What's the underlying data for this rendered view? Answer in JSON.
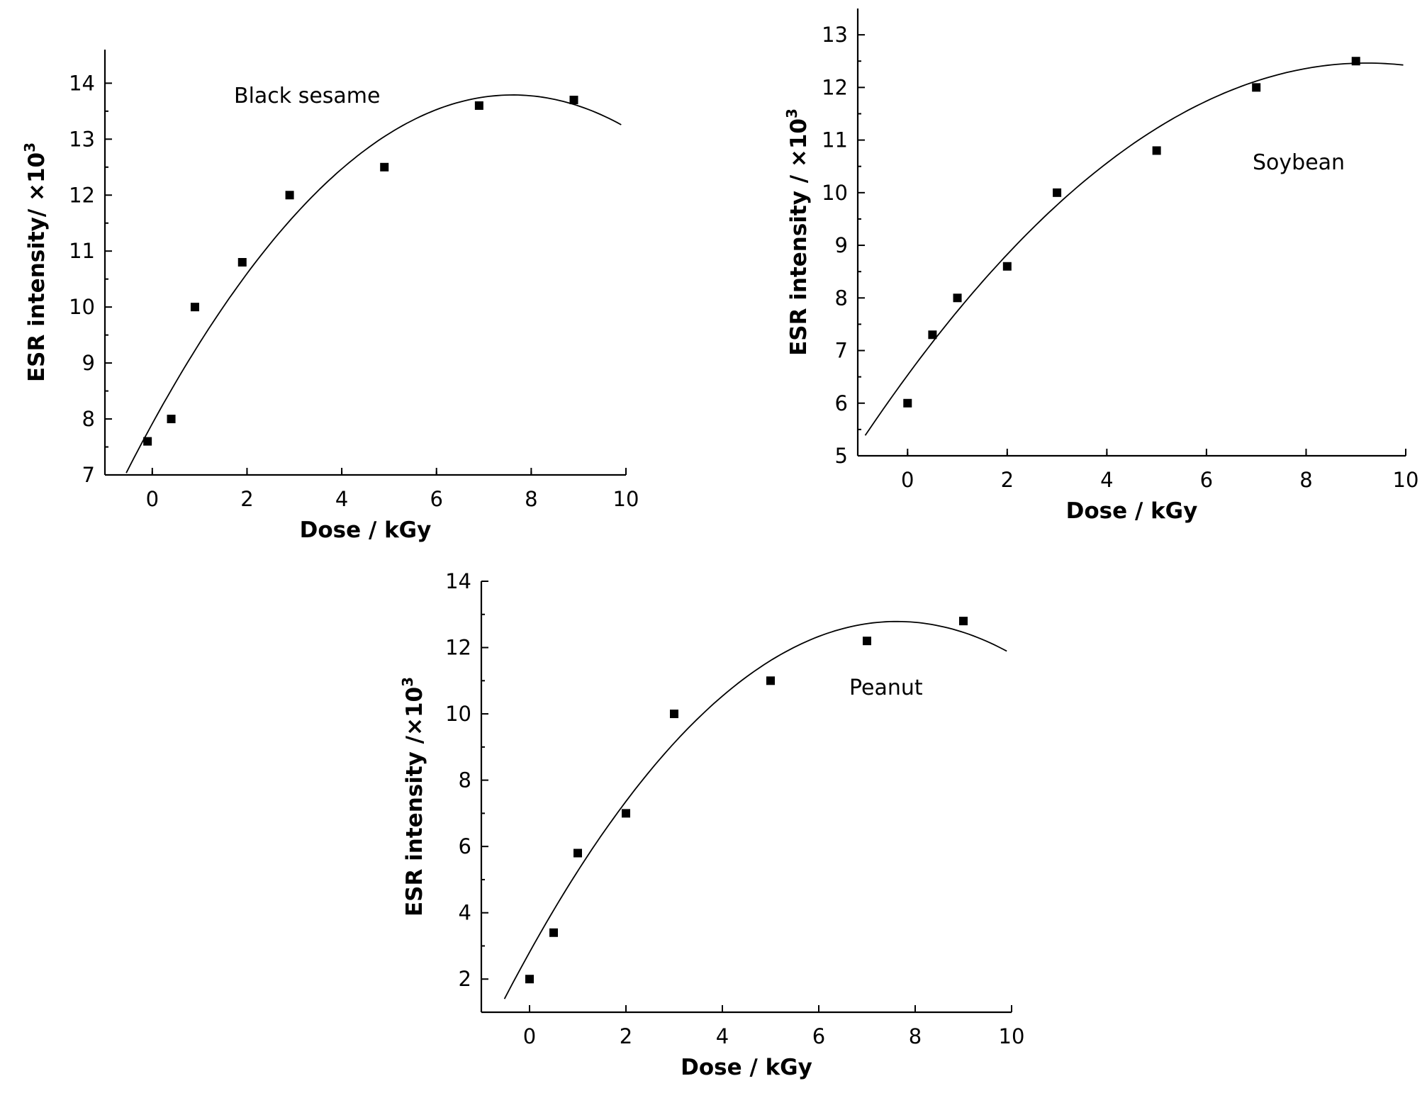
{
  "chart_data": [
    {
      "type": "scatter",
      "annotation": "Black sesame",
      "xlabel": "Dose / kGy",
      "ylabel_main": "ESR intensity/ ×10",
      "ylabel_sup": "3",
      "xlim": [
        -1,
        10
      ],
      "ylim": [
        7,
        14.6
      ],
      "xticks": [
        0,
        2,
        4,
        6,
        8,
        10
      ],
      "yticks": [
        7,
        8,
        9,
        10,
        11,
        12,
        13,
        14
      ],
      "grid": false,
      "points": [
        {
          "x": -0.1,
          "y": 7.6
        },
        {
          "x": 0.4,
          "y": 8.0
        },
        {
          "x": 0.9,
          "y": 10.0
        },
        {
          "x": 1.9,
          "y": 10.8
        },
        {
          "x": 2.9,
          "y": 12.0
        },
        {
          "x": 4.9,
          "y": 12.5
        },
        {
          "x": 6.9,
          "y": 13.6
        },
        {
          "x": 8.9,
          "y": 13.7
        }
      ],
      "fit": {
        "type": "quadratic",
        "coefficients": [
          7.916,
          1.5441,
          -0.10147
        ],
        "x_range": [
          -0.55,
          9.9
        ]
      }
    },
    {
      "type": "scatter",
      "annotation": "Soybean",
      "xlabel": "Dose / kGy",
      "ylabel_main": "ESR intensity / ×10",
      "ylabel_sup": "3",
      "xlim": [
        -1,
        10
      ],
      "ylim": [
        5,
        13.5
      ],
      "xticks": [
        0,
        2,
        4,
        6,
        8,
        10
      ],
      "yticks": [
        5,
        6,
        7,
        8,
        9,
        10,
        11,
        12,
        13
      ],
      "grid": false,
      "points": [
        {
          "x": 0,
          "y": 6.0
        },
        {
          "x": 0.5,
          "y": 7.3
        },
        {
          "x": 1.0,
          "y": 8.0
        },
        {
          "x": 2.0,
          "y": 8.6
        },
        {
          "x": 3.0,
          "y": 10.0
        },
        {
          "x": 5.0,
          "y": 10.8
        },
        {
          "x": 7.0,
          "y": 12.0
        },
        {
          "x": 9.0,
          "y": 12.5
        }
      ],
      "fit": {
        "type": "quadratic",
        "coefficients": [
          6.5318,
          1.2872,
          -0.069833
        ],
        "x_range": [
          -0.85,
          9.95
        ]
      }
    },
    {
      "type": "scatter",
      "annotation": "Peanut",
      "xlabel": "Dose / kGy",
      "ylabel_main": "ESR intensity /×10",
      "ylabel_sup": "3",
      "xlim": [
        -1,
        10
      ],
      "ylim": [
        1,
        14
      ],
      "xticks": [
        0,
        2,
        4,
        6,
        8,
        10
      ],
      "yticks": [
        2,
        4,
        6,
        8,
        10,
        12,
        14
      ],
      "grid": false,
      "points": [
        {
          "x": 0,
          "y": 2.0
        },
        {
          "x": 0.5,
          "y": 3.4
        },
        {
          "x": 1.0,
          "y": 5.8
        },
        {
          "x": 2.0,
          "y": 7.0
        },
        {
          "x": 3.0,
          "y": 10.0
        },
        {
          "x": 5.0,
          "y": 11.0
        },
        {
          "x": 7.0,
          "y": 12.2
        },
        {
          "x": 9.0,
          "y": 12.8
        }
      ],
      "fit": {
        "type": "quadratic",
        "coefficients": [
          2.8106,
          2.6188,
          -0.17187
        ],
        "x_range": [
          -0.52,
          9.9
        ]
      }
    }
  ]
}
